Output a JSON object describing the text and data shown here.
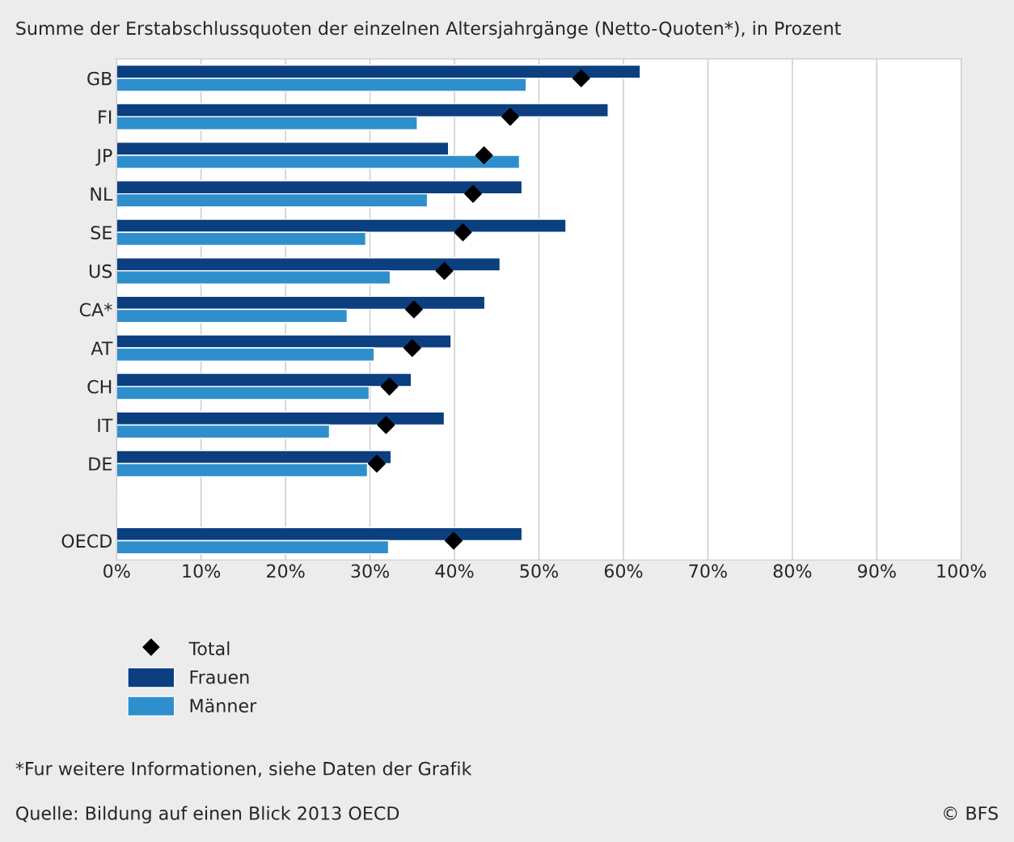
{
  "chart_data": {
    "type": "bar",
    "orientation": "horizontal",
    "title": "Summe der Erstabschlussquoten der einzelnen Altersjahrgänge (Netto-Quoten*), in Prozent",
    "categories": [
      "GB",
      "FI",
      "JP",
      "NL",
      "SE",
      "US",
      "CA*",
      "AT",
      "CH",
      "IT",
      "DE",
      null,
      "OECD"
    ],
    "series": [
      {
        "name": "Total",
        "type": "scatter",
        "marker": "diamond",
        "color": "#000000",
        "values": [
          55.0,
          46.6,
          43.5,
          42.2,
          41.0,
          38.8,
          35.2,
          35.0,
          32.3,
          31.9,
          30.8,
          null,
          39.9
        ]
      },
      {
        "name": "Frauen",
        "color": "#0b3f80",
        "values": [
          62.0,
          58.2,
          39.3,
          48.0,
          53.2,
          45.4,
          43.6,
          39.6,
          34.9,
          38.8,
          32.5,
          null,
          48.0
        ]
      },
      {
        "name": "Männer",
        "color": "#2f8fcc",
        "values": [
          48.5,
          35.6,
          47.7,
          36.8,
          29.5,
          32.4,
          27.3,
          30.5,
          29.9,
          25.2,
          29.7,
          null,
          32.2
        ]
      }
    ],
    "xlim": [
      0,
      100
    ],
    "xticks": [
      {
        "value": 0,
        "label": "0%"
      },
      {
        "value": 10,
        "label": "10%"
      },
      {
        "value": 20,
        "label": "20%"
      },
      {
        "value": 30,
        "label": "30%"
      },
      {
        "value": 40,
        "label": "40%"
      },
      {
        "value": 50,
        "label": "50%"
      },
      {
        "value": 60,
        "label": "60%"
      },
      {
        "value": 70,
        "label": "70%"
      },
      {
        "value": 80,
        "label": "80%"
      },
      {
        "value": 90,
        "label": "90%"
      },
      {
        "value": 100,
        "label": "100%"
      }
    ],
    "grid": "x",
    "legend": "bottom",
    "annotations": [
      "*Fur weitere Informationen, siehe Daten der Grafik",
      "Quelle: Bildung auf einen Blick 2013 OECD",
      "© BFS"
    ]
  }
}
